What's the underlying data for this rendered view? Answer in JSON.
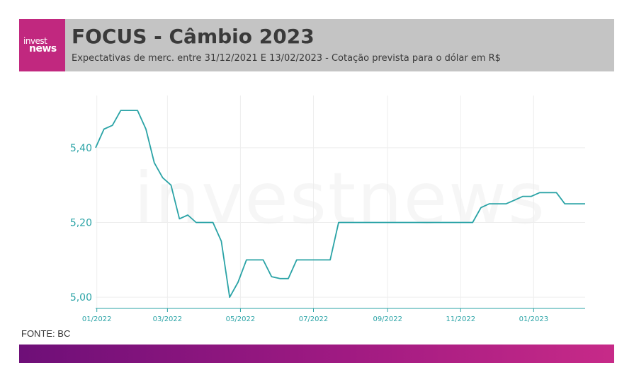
{
  "header": {
    "logo_top": "invest",
    "logo_bottom": "news",
    "title": "FOCUS - Câmbio 2023",
    "subtitle": "Expectativas de merc. entre 31/12/2021 E 13/02/2023 - Cotação prevista para o dólar em R$"
  },
  "watermark": "investnews",
  "source": "FONTE: BC",
  "colors": {
    "line": "#2aa3a6",
    "axis_text": "#2aa3a6",
    "grid": "#eeeeee",
    "header_bg": "#c4c4c4",
    "logo_bg": "#c1287f",
    "bar_start": "#6e0f78",
    "bar_end": "#c72a88"
  },
  "chart_data": {
    "type": "line",
    "title": "FOCUS - Câmbio 2023",
    "xlabel": "",
    "ylabel": "",
    "ylim": [
      4.97,
      5.54
    ],
    "xlim": [
      "2021-12-31",
      "2023-02-13"
    ],
    "yticks": [
      5.0,
      5.2,
      5.4
    ],
    "ytick_labels": [
      "5,00",
      "5,20",
      "5,40"
    ],
    "xticks": [
      "2022-01-01",
      "2022-03-01",
      "2022-05-01",
      "2022-07-01",
      "2022-09-01",
      "2022-11-01",
      "2023-01-01"
    ],
    "xtick_labels": [
      "01/2022",
      "03/2022",
      "05/2022",
      "07/2022",
      "09/2022",
      "11/2022",
      "01/2023"
    ],
    "grid": true,
    "series": [
      {
        "x": [
          "2021-12-31",
          "2022-01-07",
          "2022-01-14",
          "2022-01-21",
          "2022-01-28",
          "2022-02-04",
          "2022-02-11",
          "2022-02-18",
          "2022-02-25",
          "2022-03-04",
          "2022-03-11",
          "2022-03-18",
          "2022-03-25",
          "2022-04-01",
          "2022-04-08",
          "2022-04-15",
          "2022-04-22",
          "2022-04-29",
          "2022-05-06",
          "2022-05-13",
          "2022-05-20",
          "2022-05-27",
          "2022-06-03",
          "2022-06-10",
          "2022-06-17",
          "2022-06-24",
          "2022-07-01",
          "2022-07-08",
          "2022-07-15",
          "2022-07-22",
          "2022-07-29",
          "2022-08-05",
          "2022-08-12",
          "2022-08-19",
          "2022-08-26",
          "2022-09-02",
          "2022-09-09",
          "2022-09-16",
          "2022-09-23",
          "2022-09-30",
          "2022-10-07",
          "2022-10-14",
          "2022-10-21",
          "2022-10-28",
          "2022-11-04",
          "2022-11-11",
          "2022-11-18",
          "2022-11-25",
          "2022-12-02",
          "2022-12-09",
          "2022-12-16",
          "2022-12-23",
          "2022-12-30",
          "2023-01-06",
          "2023-01-13",
          "2023-01-20",
          "2023-01-27",
          "2023-02-03",
          "2023-02-10",
          "2023-02-13"
        ],
        "y": [
          5.4,
          5.45,
          5.46,
          5.5,
          5.5,
          5.5,
          5.45,
          5.36,
          5.32,
          5.3,
          5.21,
          5.22,
          5.2,
          5.2,
          5.2,
          5.15,
          5.0,
          5.04,
          5.1,
          5.1,
          5.1,
          5.055,
          5.05,
          5.05,
          5.1,
          5.1,
          5.1,
          5.1,
          5.1,
          5.2,
          5.2,
          5.2,
          5.2,
          5.2,
          5.2,
          5.2,
          5.2,
          5.2,
          5.2,
          5.2,
          5.2,
          5.2,
          5.2,
          5.2,
          5.2,
          5.2,
          5.24,
          5.25,
          5.25,
          5.25,
          5.26,
          5.27,
          5.27,
          5.28,
          5.28,
          5.28,
          5.25,
          5.25,
          5.25,
          5.25
        ]
      }
    ]
  }
}
